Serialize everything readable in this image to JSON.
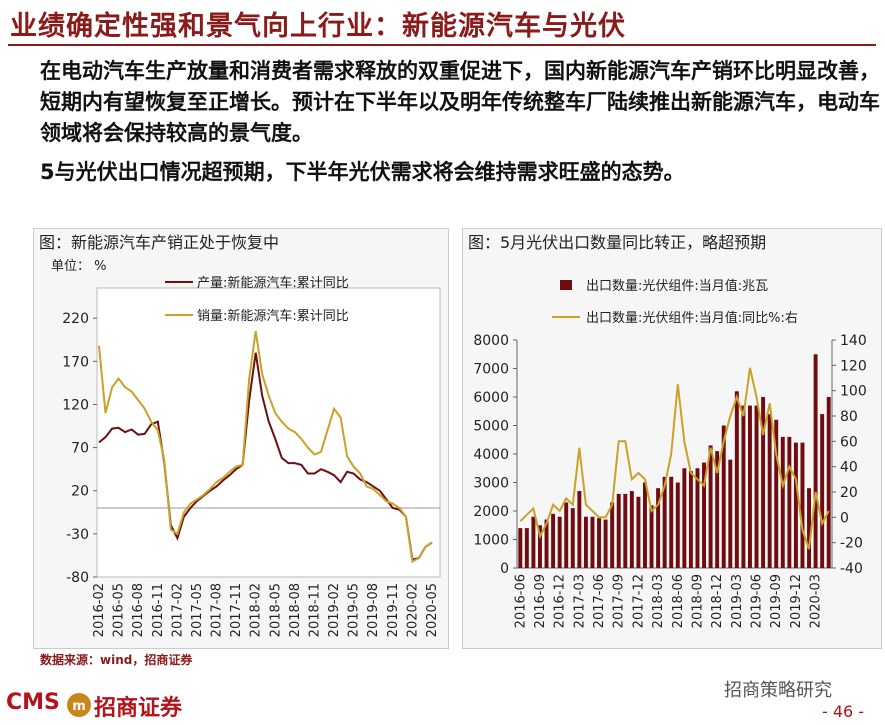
{
  "header": {
    "title": "业绩确定性强和景气向上行业：新能源汽车与光伏"
  },
  "body": {
    "paragraphs": [
      "在电动汽车生产放量和消费者需求释放的双重促进下，国内新能源汽车产销环比明显改善，短期内有望恢复至正增长。预计在下半年以及明年传统整车厂陆续推出新能源汽车，电动车领域将会保持较高的景气度。",
      "5与光伏出口情况超预期，下半年光伏需求将会维持需求旺盛的态势。"
    ]
  },
  "chart_data": [
    {
      "type": "line",
      "title": "图：新能源汽车产销正处于恢复中",
      "unit_label": "单位： %",
      "categories": [
        "2016-02",
        null,
        null,
        "2016-05",
        null,
        null,
        "2016-08",
        null,
        null,
        "2016-11",
        null,
        null,
        "2017-02",
        null,
        null,
        "2017-05",
        null,
        null,
        "2017-08",
        null,
        null,
        "2017-11",
        null,
        null,
        "2018-02",
        null,
        null,
        "2018-05",
        null,
        null,
        "2018-08",
        null,
        null,
        "2018-11",
        null,
        null,
        "2019-02",
        null,
        null,
        "2019-05",
        null,
        null,
        "2019-08",
        null,
        null,
        "2019-11",
        null,
        null,
        "2020-02",
        null,
        null,
        "2020-05"
      ],
      "series": [
        {
          "name": "产量:新能源汽车:累计同比",
          "color": "#6e0f12",
          "values": [
            76,
            82,
            92,
            93,
            88,
            91,
            85,
            86,
            97,
            100,
            52,
            -20,
            -35,
            -10,
            0,
            8,
            14,
            20,
            25,
            32,
            38,
            45,
            50,
            125,
            180,
            130,
            100,
            80,
            58,
            52,
            52,
            50,
            40,
            40,
            45,
            42,
            38,
            30,
            42,
            40,
            33,
            30,
            25,
            20,
            10,
            0,
            -2,
            -10,
            -60,
            -58,
            -45,
            -40
          ]
        },
        {
          "name": "销量:新能源汽车:累计同比",
          "color": "#c9a227",
          "values": [
            188,
            110,
            140,
            150,
            140,
            135,
            125,
            115,
            100,
            90,
            55,
            -25,
            -30,
            -5,
            5,
            10,
            15,
            22,
            30,
            35,
            42,
            48,
            50,
            150,
            205,
            155,
            130,
            110,
            100,
            92,
            88,
            80,
            70,
            62,
            65,
            90,
            115,
            105,
            60,
            48,
            40,
            25,
            22,
            15,
            8,
            5,
            0,
            -10,
            -62,
            -58,
            -45,
            -40
          ]
        }
      ],
      "ylim": [
        -80,
        255
      ],
      "yticks": [
        -80,
        -30,
        20,
        70,
        120,
        170,
        220
      ]
    },
    {
      "type": "bar_line",
      "title": "图：5月光伏出口数量同比转正，略超预期",
      "categories": [
        "2016-06",
        null,
        null,
        "2016-09",
        null,
        null,
        "2016-12",
        null,
        null,
        "2017-03",
        null,
        null,
        "2017-06",
        null,
        null,
        "2017-09",
        null,
        null,
        "2017-12",
        null,
        null,
        "2018-03",
        null,
        null,
        "2018-06",
        null,
        null,
        "2018-09",
        null,
        null,
        "2018-12",
        null,
        null,
        "2019-03",
        null,
        null,
        "2019-06",
        null,
        null,
        "2019-09",
        null,
        null,
        "2019-12",
        null,
        null,
        "2020-03",
        null,
        null
      ],
      "series": [
        {
          "name": "出口数量:光伏组件:当月值:兆瓦",
          "type": "bar",
          "color": "#700c0f",
          "values": [
            1400,
            1400,
            1800,
            1500,
            1700,
            1900,
            1800,
            2300,
            2100,
            2700,
            1800,
            1800,
            1750,
            1700,
            2300,
            2600,
            2600,
            2700,
            2500,
            3000,
            2200,
            2800,
            3200,
            3200,
            3000,
            3500,
            3400,
            3500,
            3700,
            4300,
            4100,
            5000,
            3800,
            6200,
            5700,
            5700,
            5700,
            6000,
            5400,
            5200,
            4600,
            4600,
            4400,
            4400,
            2800,
            7500,
            5400,
            6000
          ]
        },
        {
          "name": "出口数量:光伏组件:当月值:同比%:右",
          "type": "line",
          "axis": "y2",
          "color": "#c9a227",
          "values": [
            -3,
            2,
            7,
            -15,
            -5,
            10,
            5,
            15,
            10,
            55,
            10,
            5,
            0,
            0,
            10,
            60,
            60,
            30,
            35,
            30,
            5,
            10,
            25,
            50,
            105,
            60,
            35,
            30,
            25,
            55,
            35,
            60,
            80,
            95,
            80,
            118,
            95,
            65,
            90,
            50,
            25,
            40,
            30,
            -10,
            -25,
            20,
            -5,
            5
          ]
        }
      ],
      "ylim": [
        0,
        8000
      ],
      "yticks": [
        0,
        1000,
        2000,
        3000,
        4000,
        5000,
        6000,
        7000,
        8000
      ],
      "y2lim": [
        -40,
        140
      ],
      "y2ticks": [
        -40,
        -20,
        0,
        20,
        40,
        60,
        80,
        100,
        120,
        140
      ]
    }
  ],
  "source": "数据来源：wind，招商证券",
  "footer": {
    "logo": "CMS",
    "company": "招商证券",
    "wechat": "招商策略研究",
    "page": "- 46 -"
  }
}
